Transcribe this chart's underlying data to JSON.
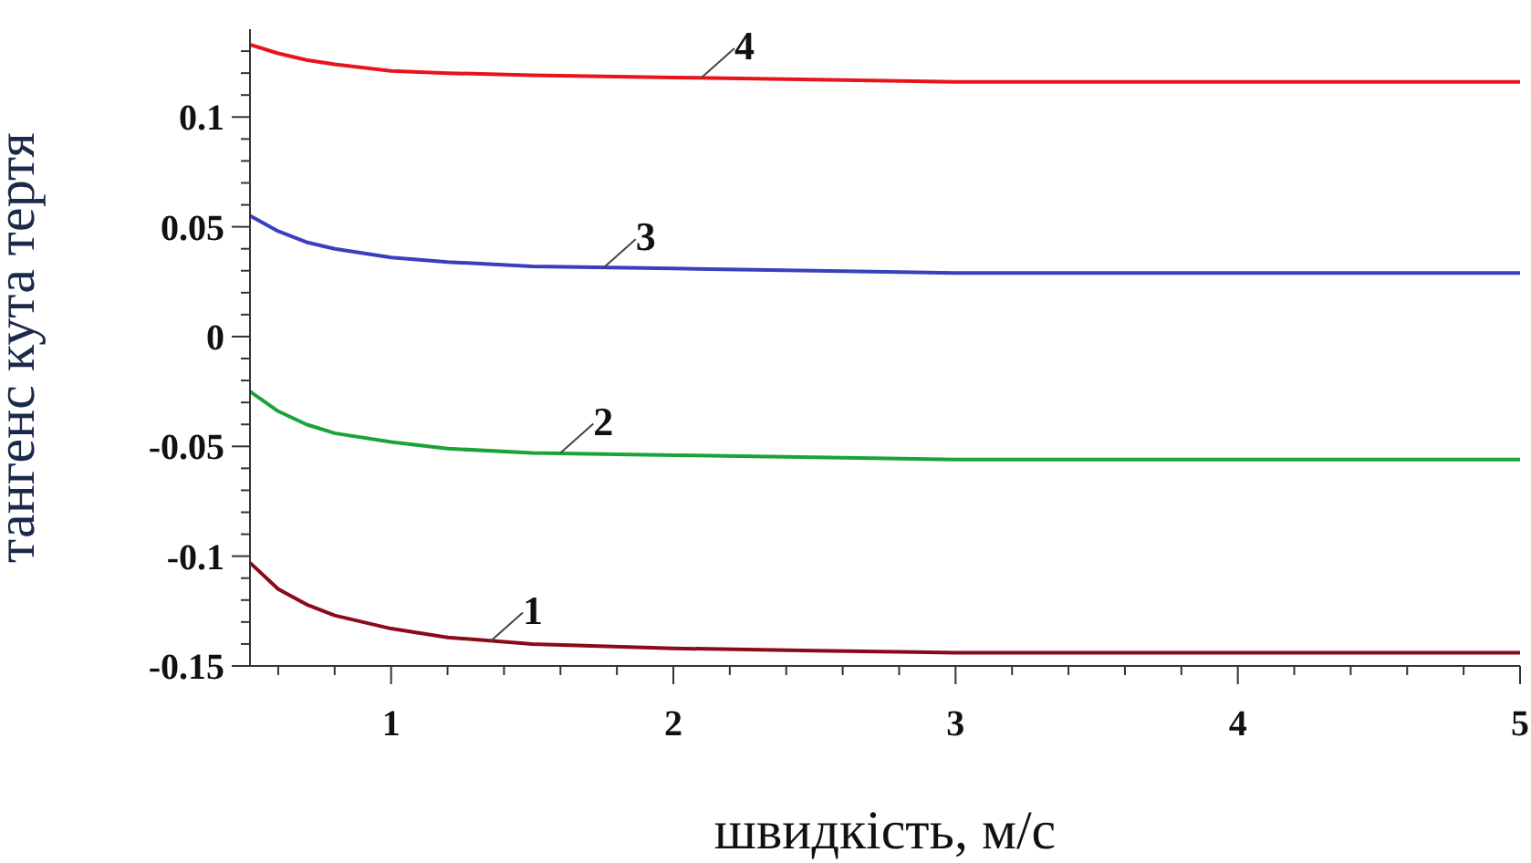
{
  "chart_data": {
    "type": "line",
    "xlabel": "швидкість, м/с",
    "ylabel": "тангенс кута тертя",
    "x": [
      0.5,
      0.6,
      0.7,
      0.8,
      1,
      1.2,
      1.5,
      2,
      2.5,
      3,
      4,
      5
    ],
    "series": [
      {
        "color": "#8b0a1a",
        "values": [
          -0.103,
          -0.115,
          -0.122,
          -0.127,
          -0.133,
          -0.137,
          -0.14,
          -0.142,
          -0.143,
          -0.144,
          -0.144,
          -0.144
        ]
      },
      {
        "color": "#1aa33a",
        "values": [
          -0.025,
          -0.034,
          -0.04,
          -0.044,
          -0.048,
          -0.051,
          -0.053,
          -0.054,
          -0.055,
          -0.056,
          -0.056,
          -0.056
        ]
      },
      {
        "color": "#3a3fbf",
        "values": [
          0.055,
          0.048,
          0.043,
          0.04,
          0.036,
          0.034,
          0.032,
          0.031,
          0.03,
          0.029,
          0.029,
          0.029
        ]
      },
      {
        "color": "#e8141c",
        "values": [
          0.133,
          0.129,
          0.126,
          0.124,
          0.121,
          0.12,
          0.119,
          0.118,
          0.117,
          0.116,
          0.116,
          0.116
        ]
      }
    ],
    "annotations": [
      {
        "text": "1",
        "x": 1.35,
        "y": -0.139
      },
      {
        "text": "2",
        "x": 1.6,
        "y": -0.053
      },
      {
        "text": "3",
        "x": 1.75,
        "y": 0.031
      },
      {
        "text": "4",
        "x": 2.1,
        "y": 0.118
      }
    ],
    "xlim": [
      0.5,
      5
    ],
    "xticks": [
      {
        "value": 0.6,
        "label": null
      },
      {
        "value": 0.8,
        "label": null
      },
      1,
      {
        "value": 1.2,
        "label": null
      },
      {
        "value": 1.4,
        "label": null
      },
      {
        "value": 1.6,
        "label": null
      },
      {
        "value": 1.8,
        "label": null
      },
      2,
      {
        "value": 2.2,
        "label": null
      },
      {
        "value": 2.4,
        "label": null
      },
      {
        "value": 2.6,
        "label": null
      },
      {
        "value": 2.8,
        "label": null
      },
      3,
      {
        "value": 3.2,
        "label": null
      },
      {
        "value": 3.4,
        "label": null
      },
      {
        "value": 3.6,
        "label": null
      },
      {
        "value": 3.8,
        "label": null
      },
      4,
      {
        "value": 4.2,
        "label": null
      },
      {
        "value": 4.4,
        "label": null
      },
      {
        "value": 4.6,
        "label": null
      },
      {
        "value": 4.8,
        "label": null
      },
      5
    ],
    "ylim": [
      -0.15,
      0.14
    ],
    "yticks": [
      -0.15,
      {
        "value": -0.14,
        "label": null
      },
      {
        "value": -0.13,
        "label": null
      },
      {
        "value": -0.12,
        "label": null
      },
      {
        "value": -0.11,
        "label": null
      },
      -0.1,
      {
        "value": -0.09,
        "label": null
      },
      {
        "value": -0.08,
        "label": null
      },
      {
        "value": -0.07,
        "label": null
      },
      {
        "value": -0.06,
        "label": null
      },
      -0.05,
      {
        "value": -0.04,
        "label": null
      },
      {
        "value": -0.03,
        "label": null
      },
      {
        "value": -0.02,
        "label": null
      },
      {
        "value": -0.01,
        "label": null
      },
      0,
      {
        "value": 0.01,
        "label": null
      },
      {
        "value": 0.02,
        "label": null
      },
      {
        "value": 0.03,
        "label": null
      },
      {
        "value": 0.04,
        "label": null
      },
      0.05,
      {
        "value": 0.06,
        "label": null
      },
      {
        "value": 0.07,
        "label": null
      },
      {
        "value": 0.08,
        "label": null
      },
      {
        "value": 0.09,
        "label": null
      },
      0.1,
      {
        "value": 0.11,
        "label": null
      },
      {
        "value": 0.12,
        "label": null
      },
      {
        "value": 0.13,
        "label": null
      }
    ],
    "grid": false,
    "legend": false,
    "marker": "none",
    "line_style": "solid"
  }
}
